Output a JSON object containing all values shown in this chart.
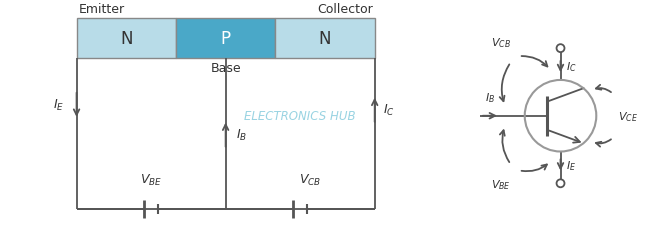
{
  "bg_color": "#ffffff",
  "line_color": "#555555",
  "n_region_color": "#b8dce8",
  "p_region_color": "#4aa8c8",
  "text_color": "#333333",
  "watermark_color": "#88ccdd",
  "transistor_circle_color": "#999999",
  "box_border_color": "#888888",
  "emitter_label": "Emitter",
  "collector_label": "Collector",
  "base_label": "Base",
  "n_label": "N",
  "p_label": "P",
  "watermark_text": "ELECTRONICS HUB"
}
